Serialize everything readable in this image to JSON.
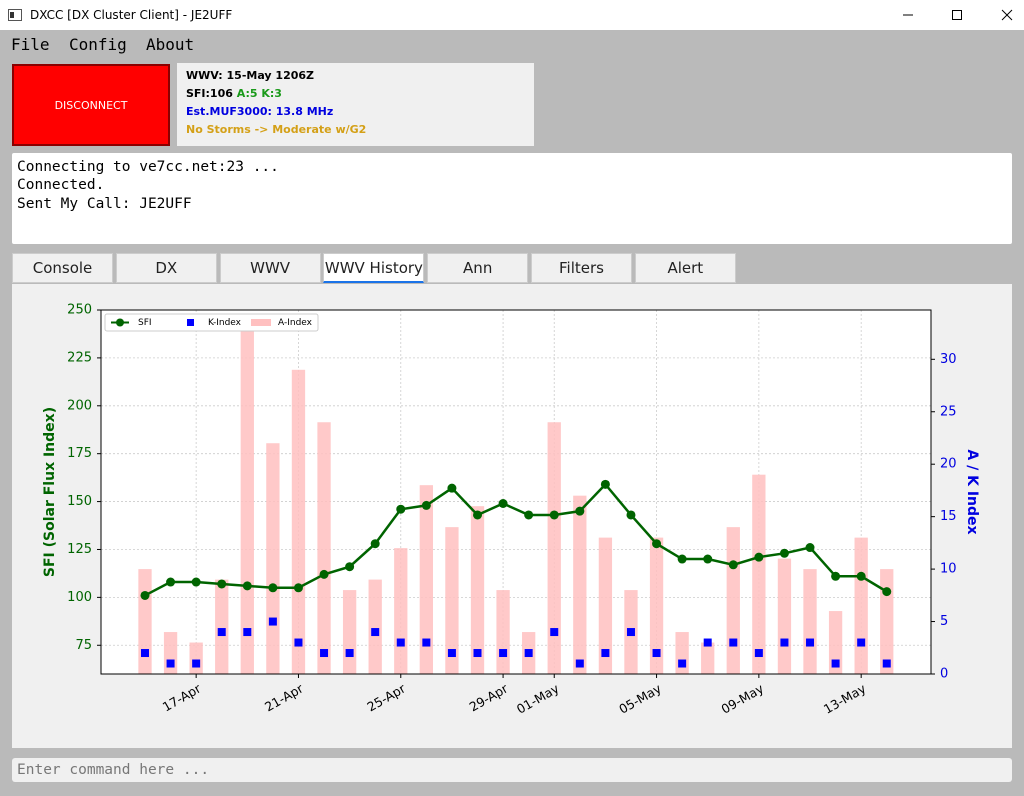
{
  "window": {
    "title": "DXCC [DX Cluster Client] - JE2UFF"
  },
  "menu": [
    "File",
    "Config",
    "About"
  ],
  "connect_button": "DISCONNECT",
  "status": {
    "wwv": "WWV: 15-May 1206Z",
    "sfi": "SFI:106",
    "ak": "A:5 K:3",
    "muf": "Est.MUF3000: 13.8 MHz",
    "storm": "No Storms -> Moderate w/G2"
  },
  "console": [
    "Connecting to ve7cc.net:23 ...",
    "Connected.",
    "Sent My Call: JE2UFF"
  ],
  "tabs": [
    "Console",
    "DX",
    "WWV",
    "WWV History",
    "Ann",
    "Filters",
    "Alert"
  ],
  "active_tab": 3,
  "command_placeholder": "Enter command here ...",
  "chart_data": {
    "type": "line",
    "ylabel": "SFI (Solar Flux Index)",
    "y2label": "A / K Index",
    "x": [
      "15-Apr",
      "16-Apr",
      "17-Apr",
      "18-Apr",
      "19-Apr",
      "20-Apr",
      "21-Apr",
      "22-Apr",
      "23-Apr",
      "24-Apr",
      "25-Apr",
      "26-Apr",
      "27-Apr",
      "28-Apr",
      "29-Apr",
      "30-Apr",
      "01-May",
      "02-May",
      "03-May",
      "04-May",
      "05-May",
      "06-May",
      "07-May",
      "08-May",
      "09-May",
      "10-May",
      "11-May",
      "12-May",
      "13-May",
      "14-May"
    ],
    "xticks": [
      "17-Apr",
      "21-Apr",
      "25-Apr",
      "29-Apr",
      "01-May",
      "05-May",
      "09-May",
      "13-May"
    ],
    "ylim": [
      60,
      250
    ],
    "yticks": [
      75,
      100,
      125,
      150,
      175,
      200,
      225,
      250
    ],
    "y2lim": [
      0,
      34.7
    ],
    "y2ticks": [
      0,
      5,
      10,
      15,
      20,
      25,
      30
    ],
    "grid": true,
    "legend": "upper left",
    "series": [
      {
        "name": "SFI",
        "type": "line",
        "color": "#006400",
        "values": [
          101,
          108,
          108,
          107,
          106,
          105,
          105,
          112,
          116,
          128,
          146,
          148,
          157,
          143,
          149,
          143,
          143,
          145,
          159,
          143,
          128,
          120,
          120,
          117,
          121,
          123,
          126,
          111,
          111,
          103
        ]
      },
      {
        "name": "K-Index",
        "type": "scatter",
        "axis": "y2",
        "color": "#0000ff",
        "values": [
          2,
          1,
          1,
          4,
          4,
          5,
          3,
          2,
          2,
          4,
          3,
          3,
          2,
          2,
          2,
          2,
          4,
          1,
          2,
          4,
          2,
          1,
          3,
          3,
          2,
          3,
          3,
          1,
          3,
          1
        ]
      },
      {
        "name": "A-Index",
        "type": "bar",
        "axis": "y2",
        "color": "#ffc0c0",
        "values": [
          10,
          4,
          3,
          9,
          33,
          22,
          29,
          24,
          8,
          9,
          12,
          18,
          14,
          16,
          8,
          4,
          24,
          17,
          13,
          8,
          13,
          4,
          3,
          14,
          19,
          11,
          10,
          6,
          13,
          10
        ]
      }
    ]
  }
}
